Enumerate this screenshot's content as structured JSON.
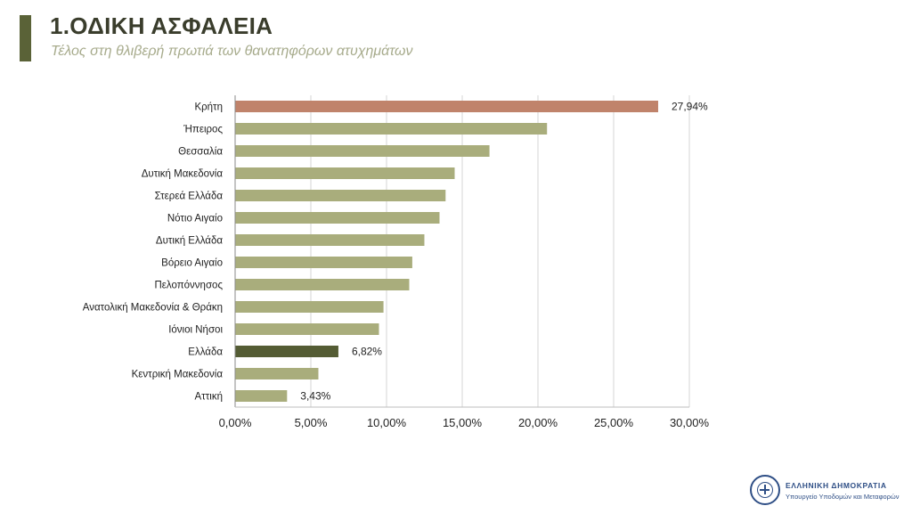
{
  "header": {
    "title": "1.ΟΔΙΚΗ ΑΣΦΑΛΕΙΑ",
    "subtitle": "Τέλος στη θλιβερή πρωτιά των θανατηφόρων ατυχημάτων"
  },
  "footer": {
    "line1": "ΕΛΛΗΝΙΚΗ ΔΗΜΟΚΡΑΤΙΑ",
    "line2": "Υπουργείο Υποδομών και Μεταφορών"
  },
  "colors": {
    "default_bar": "#a9ad7c",
    "highlight_bar": "#c0836b",
    "national_bar": "#545c34",
    "accent": "#5a6237"
  },
  "chart_data": {
    "type": "bar",
    "orientation": "horizontal",
    "categories": [
      "Κρήτη",
      "Ήπειρος",
      "Θεσσαλία",
      "Δυτική Μακεδονία",
      "Στερεά Ελλάδα",
      "Νότιο Αιγαίο",
      "Δυτική Ελλάδα",
      "Βόρειο Αιγαίο",
      "Πελοπόννησος",
      "Ανατολική Μακεδονία & Θράκη",
      "Ιόνιοι Νήσοι",
      "Ελλάδα",
      "Κεντρική Μακεδονία",
      "Αττική"
    ],
    "values": [
      27.94,
      20.6,
      16.8,
      14.5,
      13.9,
      13.5,
      12.5,
      11.7,
      11.5,
      9.8,
      9.5,
      6.82,
      5.5,
      3.43
    ],
    "highlight": {
      "Κρήτη": "highlight",
      "Ελλάδα": "national"
    },
    "data_labels": {
      "Κρήτη": "27,94%",
      "Ελλάδα": "6,82%",
      "Αττική": "3,43%"
    },
    "xlim": [
      0,
      30
    ],
    "xticks": [
      0,
      5,
      10,
      15,
      20,
      25,
      30
    ],
    "xtick_labels": [
      "0,00%",
      "5,00%",
      "10,00%",
      "15,00%",
      "20,00%",
      "25,00%",
      "30,00%"
    ],
    "grid": "vertical",
    "legend": "none"
  }
}
